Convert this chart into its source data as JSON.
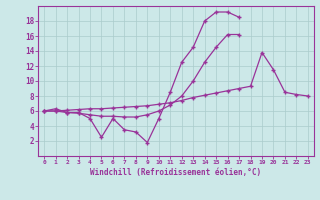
{
  "xlabel": "Windchill (Refroidissement éolien,°C)",
  "bg_color": "#cce8e8",
  "grid_color": "#aacccc",
  "line_color": "#993399",
  "xlim": [
    -0.5,
    23.5
  ],
  "ylim": [
    0,
    20
  ],
  "xticks": [
    0,
    1,
    2,
    3,
    4,
    5,
    6,
    7,
    8,
    9,
    10,
    11,
    12,
    13,
    14,
    15,
    16,
    17,
    18,
    19,
    20,
    21,
    22,
    23
  ],
  "yticks": [
    2,
    4,
    6,
    8,
    10,
    12,
    14,
    16,
    18
  ],
  "line1_x": [
    0,
    1,
    2,
    3,
    4,
    5,
    6,
    7,
    8,
    9,
    10,
    11,
    12,
    13,
    14,
    15,
    16,
    17
  ],
  "line1_y": [
    6.0,
    6.3,
    5.8,
    5.8,
    5.0,
    2.5,
    5.0,
    3.5,
    3.2,
    1.8,
    5.0,
    8.5,
    12.5,
    14.5,
    18.0,
    19.2,
    19.2,
    18.5
  ],
  "line2_x": [
    0,
    1,
    2,
    3,
    4,
    5,
    6,
    7,
    8,
    9,
    10,
    11,
    12,
    13,
    14,
    15,
    16,
    17
  ],
  "line2_y": [
    6.0,
    6.0,
    5.8,
    5.7,
    5.5,
    5.3,
    5.3,
    5.2,
    5.2,
    5.5,
    6.0,
    6.8,
    8.0,
    10.0,
    12.5,
    14.5,
    16.2,
    16.2
  ],
  "line3_x": [
    0,
    1,
    2,
    3,
    4,
    5,
    6,
    7,
    8,
    9,
    10,
    11,
    12,
    13,
    14,
    15,
    16,
    17,
    18,
    19,
    20,
    21,
    22,
    23
  ],
  "line3_y": [
    6.0,
    6.0,
    6.1,
    6.2,
    6.3,
    6.3,
    6.4,
    6.5,
    6.6,
    6.7,
    6.9,
    7.1,
    7.4,
    7.8,
    8.1,
    8.4,
    8.7,
    9.0,
    9.3,
    13.8,
    11.5,
    8.5,
    8.2,
    8.0
  ]
}
